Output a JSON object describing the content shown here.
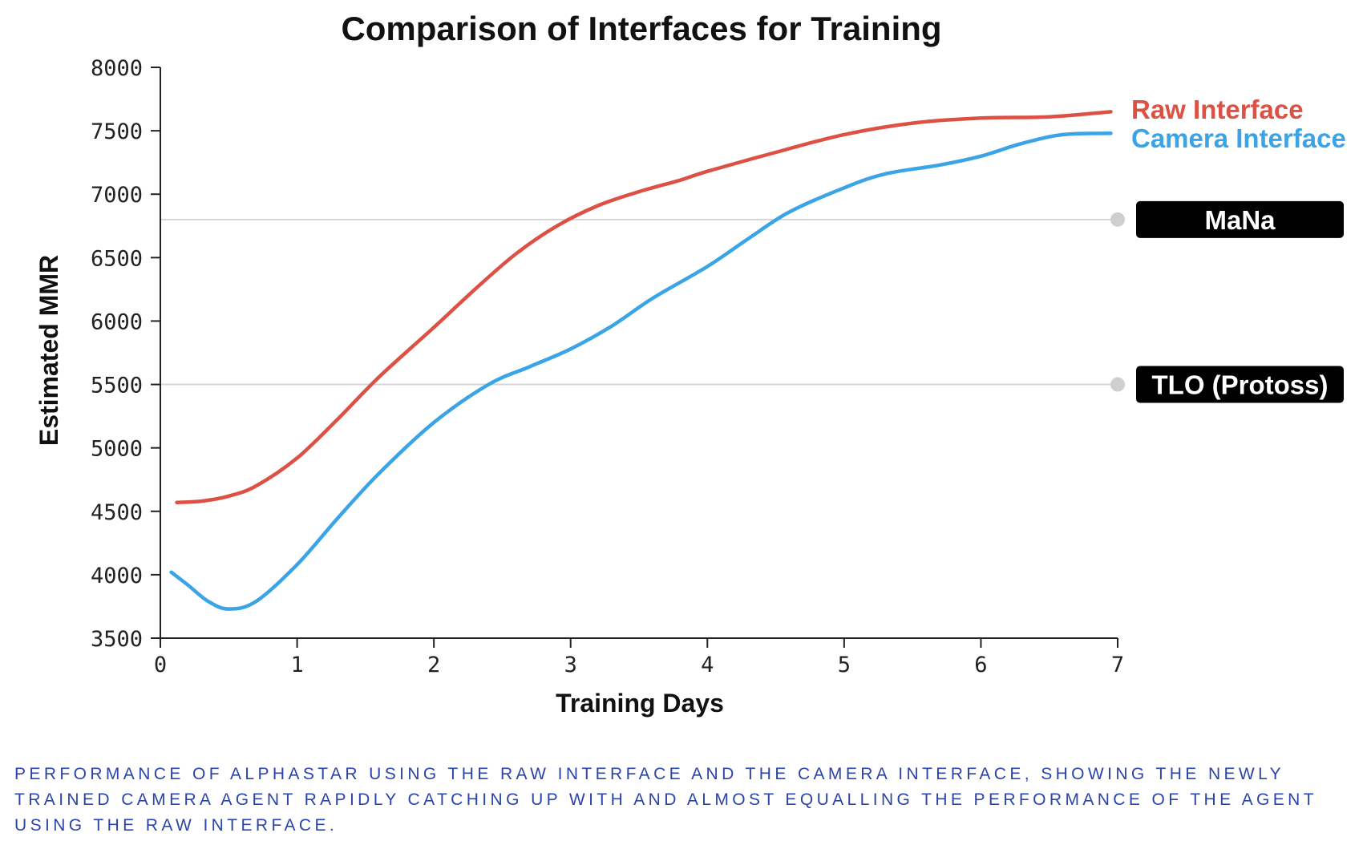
{
  "chart_data": {
    "type": "line",
    "title": "Comparison of Interfaces for Training",
    "xlabel": "Training Days",
    "ylabel": "Estimated MMR",
    "xlim": [
      0,
      7
    ],
    "ylim": [
      3500,
      8000
    ],
    "xticks": [
      "0",
      "1",
      "2",
      "3",
      "4",
      "5",
      "6",
      "7"
    ],
    "yticks": [
      "3500",
      "4000",
      "4500",
      "5000",
      "5500",
      "6000",
      "6500",
      "7000",
      "7500",
      "8000"
    ],
    "grid": false,
    "legend": "right",
    "series": [
      {
        "name": "Raw Interface",
        "color": "#dd5144",
        "points": [
          [
            0.12,
            4570
          ],
          [
            0.3,
            4580
          ],
          [
            0.5,
            4620
          ],
          [
            0.7,
            4700
          ],
          [
            1.0,
            4920
          ],
          [
            1.3,
            5230
          ],
          [
            1.6,
            5560
          ],
          [
            2.0,
            5950
          ],
          [
            2.3,
            6250
          ],
          [
            2.6,
            6530
          ],
          [
            2.9,
            6750
          ],
          [
            3.2,
            6910
          ],
          [
            3.5,
            7020
          ],
          [
            3.8,
            7110
          ],
          [
            4.0,
            7180
          ],
          [
            4.5,
            7330
          ],
          [
            5.0,
            7470
          ],
          [
            5.5,
            7560
          ],
          [
            6.0,
            7600
          ],
          [
            6.5,
            7610
          ],
          [
            6.95,
            7650
          ]
        ]
      },
      {
        "name": "Camera Interface",
        "color": "#3aa4e6",
        "points": [
          [
            0.08,
            4020
          ],
          [
            0.2,
            3920
          ],
          [
            0.35,
            3790
          ],
          [
            0.5,
            3730
          ],
          [
            0.7,
            3790
          ],
          [
            1.0,
            4080
          ],
          [
            1.3,
            4450
          ],
          [
            1.6,
            4800
          ],
          [
            2.0,
            5200
          ],
          [
            2.4,
            5500
          ],
          [
            2.7,
            5640
          ],
          [
            3.0,
            5780
          ],
          [
            3.3,
            5960
          ],
          [
            3.6,
            6180
          ],
          [
            4.0,
            6430
          ],
          [
            4.3,
            6650
          ],
          [
            4.6,
            6860
          ],
          [
            5.0,
            7050
          ],
          [
            5.3,
            7160
          ],
          [
            5.7,
            7230
          ],
          [
            6.0,
            7300
          ],
          [
            6.3,
            7400
          ],
          [
            6.6,
            7470
          ],
          [
            6.95,
            7480
          ]
        ]
      }
    ],
    "reference_lines": [
      {
        "label": "MaNa",
        "value": 6800,
        "line_color": "#d6d6d6",
        "box_color": "#000000"
      },
      {
        "label": "TLO (Protoss)",
        "value": 5500,
        "line_color": "#d6d6d6",
        "box_color": "#000000"
      }
    ]
  },
  "caption": "Performance of AlphaStar using the raw interface and the camera interface, showing the newly trained camera agent rapidly catching up with and almost equalling the performance of the agent using the raw interface."
}
